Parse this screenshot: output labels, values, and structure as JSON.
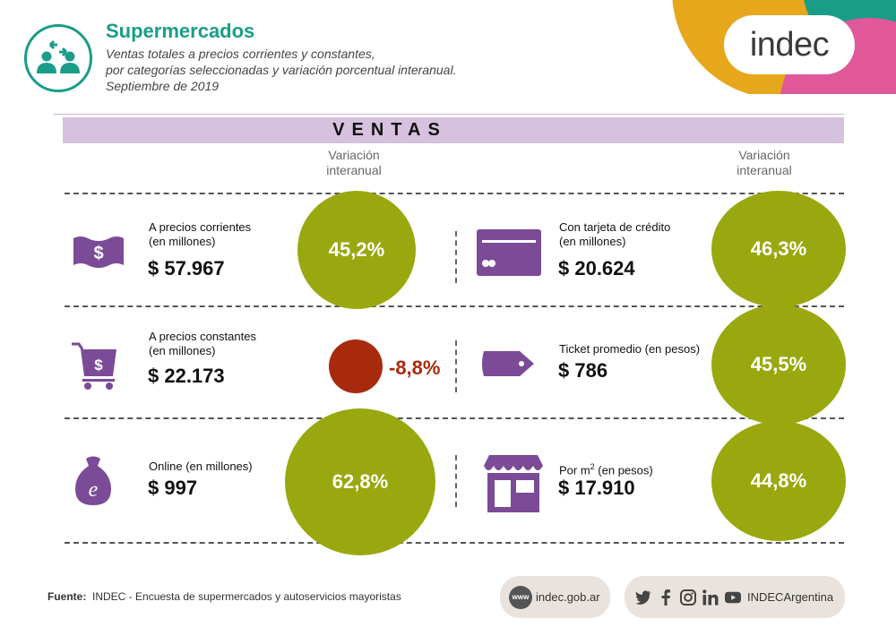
{
  "header": {
    "title": "Supermercados",
    "subtitle_1": "Ventas totales a precios corrientes y constantes,",
    "subtitle_2": "por categorías seleccionadas y variación porcentual interanual.",
    "subtitle_3": "Septiembre de 2019",
    "logo": "indec"
  },
  "section_title": "VENTAS",
  "variation_header_line1": "Variación",
  "variation_header_line2": "interanual",
  "left_items": [
    {
      "icon": "money-bill-icon",
      "label_1": "A precios corrientes",
      "label_2": "(en millones)",
      "value": "$ 57.967",
      "variation": "45,2%"
    },
    {
      "icon": "shopping-cart-icon",
      "label_1": "A precios constantes",
      "label_2": "(en millones)",
      "value": "$ 22.173",
      "variation": "-8,8%"
    },
    {
      "icon": "online-money-bag-icon",
      "label_1": "Online (en millones)",
      "label_2": "",
      "value": "$ 997",
      "variation": "62,8%"
    }
  ],
  "right_items": [
    {
      "icon": "credit-card-icon",
      "label_1": "Con tarjeta de crédito",
      "label_2": "(en millones)",
      "value": "$ 20.624",
      "variation": "46,3%"
    },
    {
      "icon": "price-tag-icon",
      "label_1": "Ticket promedio (en pesos)",
      "label_2": "",
      "value": "$ 786",
      "variation": "45,5%"
    },
    {
      "icon": "storefront-icon",
      "label_1": "Por m",
      "label_sup": "2",
      "label_1b": " (en pesos)",
      "value": "$ 17.910",
      "variation": "44,8%"
    }
  ],
  "footer": {
    "source_label": "Fuente:",
    "source_text": "INDEC - Encuesta de supermercados y autoservicios mayoristas",
    "www_badge": "www",
    "website": "indec.gob.ar",
    "social_handle": "INDECArgentina"
  },
  "colors": {
    "teal": "#1a9d88",
    "olive_circle": "#99a80e",
    "red_circle": "#a82a0c",
    "purple_icon": "#7b4b97",
    "band": "#d6c1de"
  }
}
